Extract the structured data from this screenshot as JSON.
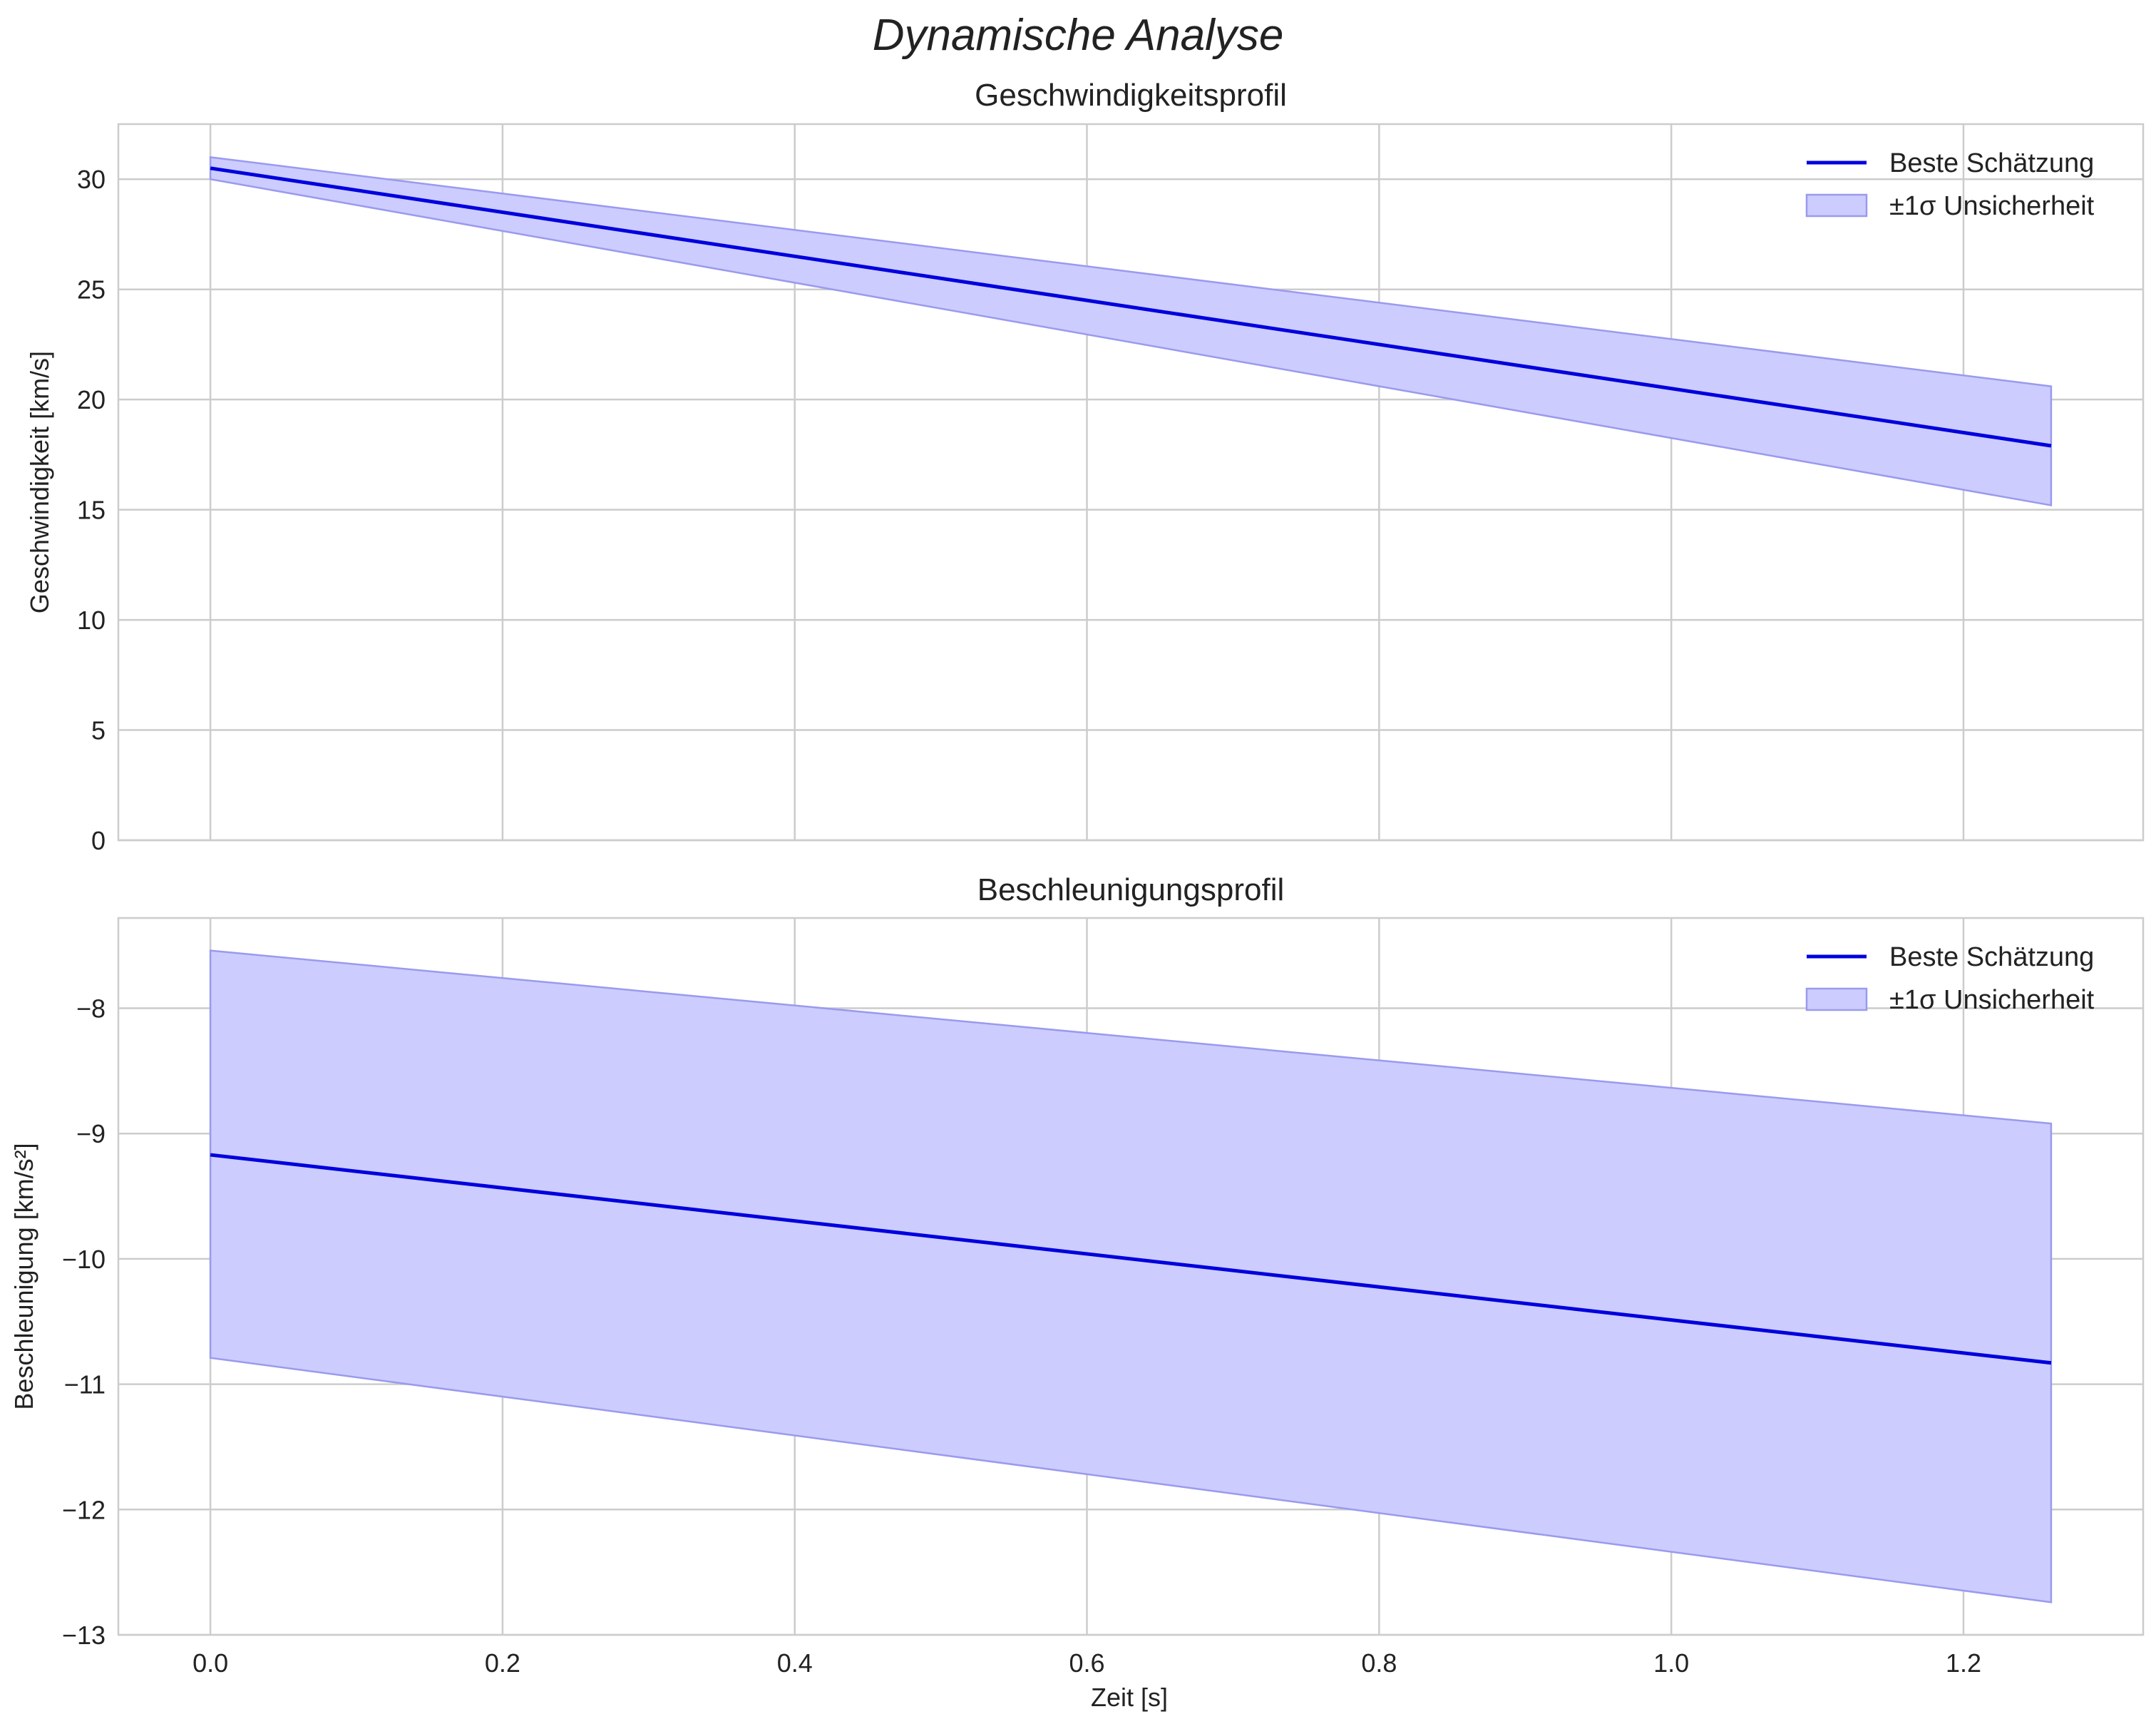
{
  "figure": {
    "suptitle": "Dynamische Analyse",
    "xlabel": "Zeit [s]",
    "colors": {
      "line": "#0000dd",
      "band": "#ccccff",
      "band_edge": "#9a9aee",
      "grid": "#cccccc",
      "text": "#222222"
    }
  },
  "chart_data": [
    {
      "type": "line",
      "title": "Geschwindigkeitsprofil",
      "xlabel": "",
      "ylabel": "Geschwindigkeit [km/s]",
      "xlim": [
        -0.063,
        1.323
      ],
      "ylim": [
        0,
        32.5
      ],
      "xticks": [
        0.0,
        0.2,
        0.4,
        0.6,
        0.8,
        1.0,
        1.2
      ],
      "yticks": [
        0,
        5,
        10,
        15,
        20,
        25,
        30
      ],
      "xtick_labels": [
        "",
        "",
        "",
        "",
        "",
        "",
        ""
      ],
      "ytick_labels": [
        "0",
        "5",
        "10",
        "15",
        "20",
        "25",
        "30"
      ],
      "grid": true,
      "legend_position": "top-right",
      "series": [
        {
          "name": "Beste Schätzung",
          "kind": "line",
          "x": [
            0.0,
            1.26
          ],
          "y": [
            30.5,
            17.9
          ]
        }
      ],
      "bands": [
        {
          "name": "±1σ Unsicherheit",
          "x": [
            0.0,
            1.26
          ],
          "lower": [
            30.0,
            15.2
          ],
          "upper": [
            31.0,
            20.6
          ]
        }
      ],
      "legend": [
        "Beste Schätzung",
        "±1σ Unsicherheit"
      ]
    },
    {
      "type": "line",
      "title": "Beschleunigungsprofil",
      "xlabel": "Zeit [s]",
      "ylabel": "Beschleunigung [km/s²]",
      "xlim": [
        -0.063,
        1.323
      ],
      "ylim": [
        -13,
        -7.28
      ],
      "xticks": [
        0.0,
        0.2,
        0.4,
        0.6,
        0.8,
        1.0,
        1.2
      ],
      "yticks": [
        -13,
        -12,
        -11,
        -10,
        -9,
        -8
      ],
      "xtick_labels": [
        "0.0",
        "0.2",
        "0.4",
        "0.6",
        "0.8",
        "1.0",
        "1.2"
      ],
      "ytick_labels": [
        "−13",
        "−12",
        "−11",
        "−10",
        "−9",
        "−8"
      ],
      "grid": true,
      "legend_position": "top-right",
      "series": [
        {
          "name": "Beste Schätzung",
          "kind": "line",
          "x": [
            0.0,
            1.26
          ],
          "y": [
            -9.17,
            -10.83
          ]
        }
      ],
      "bands": [
        {
          "name": "±1σ Unsicherheit",
          "x": [
            0.0,
            1.26
          ],
          "lower": [
            -10.79,
            -12.74
          ],
          "upper": [
            -7.54,
            -8.92
          ]
        }
      ],
      "legend": [
        "Beste Schätzung",
        "±1σ Unsicherheit"
      ]
    }
  ]
}
